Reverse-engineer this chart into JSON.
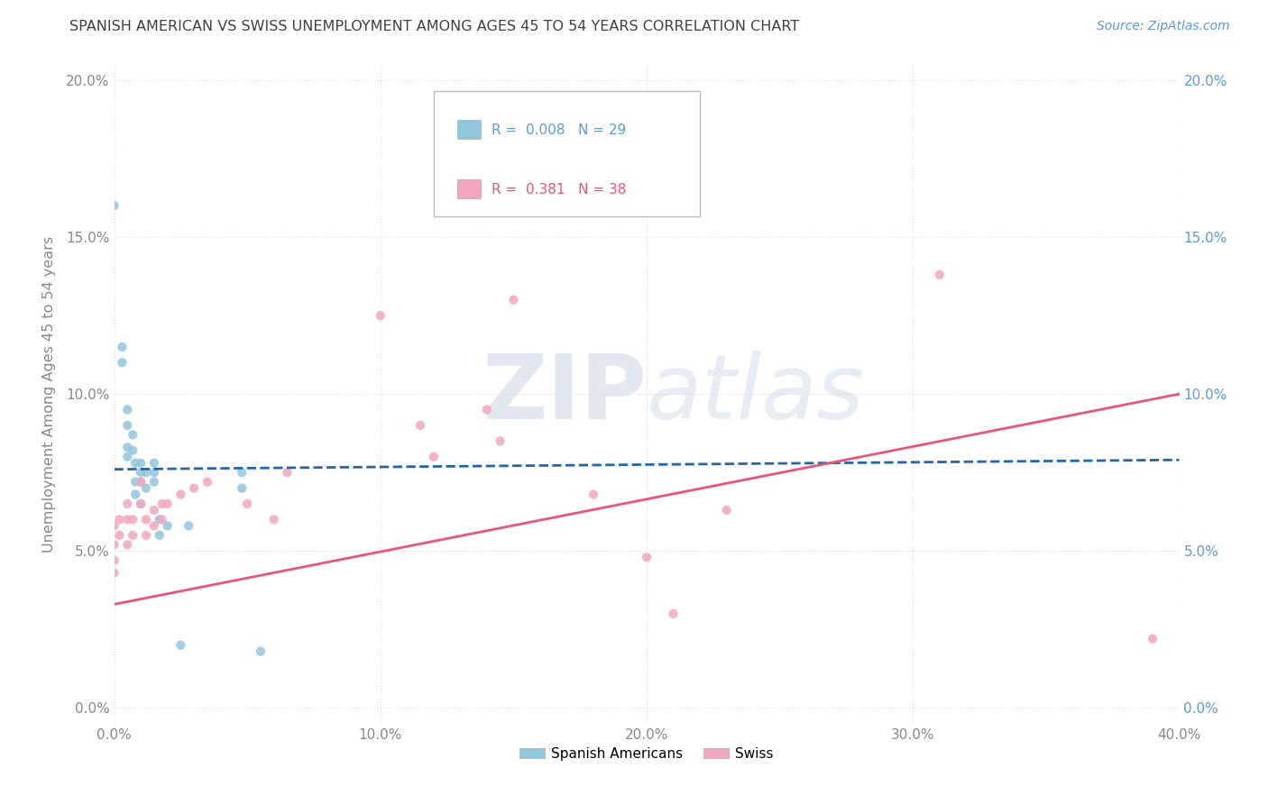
{
  "title": "SPANISH AMERICAN VS SWISS UNEMPLOYMENT AMONG AGES 45 TO 54 YEARS CORRELATION CHART",
  "source": "Source: ZipAtlas.com",
  "ylabel": "Unemployment Among Ages 45 to 54 years",
  "xlim": [
    0.0,
    0.4
  ],
  "ylim": [
    -0.005,
    0.205
  ],
  "xtick_vals": [
    0.0,
    0.1,
    0.2,
    0.3,
    0.4
  ],
  "xtick_labels": [
    "0.0%",
    "10.0%",
    "20.0%",
    "30.0%",
    "40.0%"
  ],
  "ytick_vals": [
    0.0,
    0.05,
    0.1,
    0.15,
    0.2
  ],
  "ytick_labels": [
    "0.0%",
    "5.0%",
    "10.0%",
    "15.0%",
    "20.0%"
  ],
  "blue_color": "#92c5de",
  "blue_line_color": "#2166ac",
  "pink_color": "#f4a6c0",
  "pink_line_color": "#e8547a",
  "blue_r": "0.008",
  "blue_n": "29",
  "pink_r": "0.381",
  "pink_n": "38",
  "blue_scatter": [
    [
      0.0,
      0.16
    ],
    [
      0.003,
      0.115
    ],
    [
      0.003,
      0.11
    ],
    [
      0.005,
      0.095
    ],
    [
      0.005,
      0.09
    ],
    [
      0.005,
      0.083
    ],
    [
      0.005,
      0.08
    ],
    [
      0.007,
      0.087
    ],
    [
      0.007,
      0.082
    ],
    [
      0.008,
      0.078
    ],
    [
      0.008,
      0.072
    ],
    [
      0.008,
      0.068
    ],
    [
      0.01,
      0.078
    ],
    [
      0.01,
      0.075
    ],
    [
      0.01,
      0.072
    ],
    [
      0.01,
      0.065
    ],
    [
      0.012,
      0.075
    ],
    [
      0.012,
      0.07
    ],
    [
      0.015,
      0.075
    ],
    [
      0.015,
      0.078
    ],
    [
      0.015,
      0.072
    ],
    [
      0.017,
      0.06
    ],
    [
      0.017,
      0.055
    ],
    [
      0.02,
      0.058
    ],
    [
      0.025,
      0.02
    ],
    [
      0.028,
      0.058
    ],
    [
      0.048,
      0.075
    ],
    [
      0.048,
      0.07
    ],
    [
      0.055,
      0.018
    ]
  ],
  "pink_scatter": [
    [
      0.0,
      0.058
    ],
    [
      0.0,
      0.052
    ],
    [
      0.0,
      0.047
    ],
    [
      0.0,
      0.043
    ],
    [
      0.002,
      0.06
    ],
    [
      0.002,
      0.055
    ],
    [
      0.005,
      0.065
    ],
    [
      0.005,
      0.06
    ],
    [
      0.005,
      0.052
    ],
    [
      0.007,
      0.06
    ],
    [
      0.007,
      0.055
    ],
    [
      0.01,
      0.072
    ],
    [
      0.01,
      0.065
    ],
    [
      0.012,
      0.06
    ],
    [
      0.012,
      0.055
    ],
    [
      0.015,
      0.063
    ],
    [
      0.015,
      0.058
    ],
    [
      0.018,
      0.065
    ],
    [
      0.018,
      0.06
    ],
    [
      0.02,
      0.065
    ],
    [
      0.025,
      0.068
    ],
    [
      0.03,
      0.07
    ],
    [
      0.035,
      0.072
    ],
    [
      0.05,
      0.065
    ],
    [
      0.06,
      0.06
    ],
    [
      0.065,
      0.075
    ],
    [
      0.1,
      0.125
    ],
    [
      0.115,
      0.09
    ],
    [
      0.12,
      0.08
    ],
    [
      0.14,
      0.095
    ],
    [
      0.145,
      0.085
    ],
    [
      0.15,
      0.13
    ],
    [
      0.18,
      0.068
    ],
    [
      0.2,
      0.048
    ],
    [
      0.21,
      0.03
    ],
    [
      0.23,
      0.063
    ],
    [
      0.31,
      0.138
    ],
    [
      0.39,
      0.022
    ]
  ],
  "blue_line_x": [
    0.0,
    0.4
  ],
  "blue_line_y": [
    0.076,
    0.079
  ],
  "pink_line_x": [
    0.0,
    0.4
  ],
  "pink_line_y": [
    0.033,
    0.1
  ],
  "watermark_zip": "ZIP",
  "watermark_atlas": "atlas",
  "bg_color": "#ffffff",
  "grid_color": "#dddddd",
  "tick_color": "#888888",
  "right_tick_color": "#5b9bd5",
  "source_color": "#5b9bd5",
  "title_color": "#404040"
}
